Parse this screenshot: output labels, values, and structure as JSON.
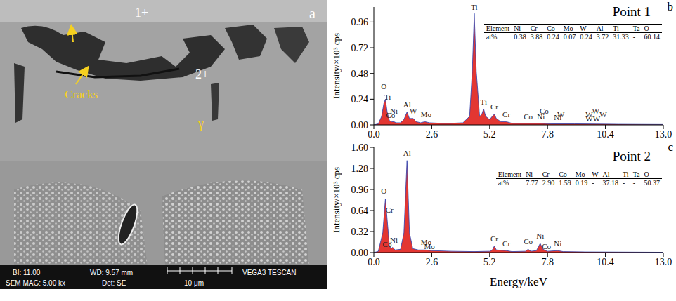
{
  "image": {
    "letter": "a",
    "labels": [
      "1+",
      "2+",
      "Cracks",
      "γ"
    ],
    "info_bar": [
      "BI: 11.00",
      "WD: 9.57 mm",
      "VEGA3 TESCAN",
      "SEM MAG: 5.00 kx",
      "Det: SE",
      "10 μm"
    ]
  },
  "x_label": "Energy/keV",
  "chart_data": [
    {
      "type": "area",
      "letter": "b",
      "title": "Point 1",
      "y_label": "Intensity/×10³ cps",
      "color": "#e0201c",
      "x": [
        0,
        0.2,
        0.35,
        0.45,
        0.52,
        0.6,
        0.7,
        0.8,
        0.9,
        1.0,
        1.2,
        1.35,
        1.49,
        1.6,
        1.77,
        1.9,
        2.1,
        2.29,
        2.5,
        3.0,
        3.5,
        4.0,
        4.3,
        4.42,
        4.51,
        4.6,
        4.75,
        4.85,
        4.93,
        5.02,
        5.2,
        5.32,
        5.41,
        5.5,
        5.7,
        5.95,
        6.2,
        6.93,
        7.47,
        8.0,
        8.4,
        9.0,
        10.0,
        11.0,
        12.0,
        13.0
      ],
      "values": [
        0,
        0.01,
        0.08,
        0.2,
        0.24,
        0.12,
        0.04,
        0.03,
        0.03,
        0.02,
        0.02,
        0.05,
        0.12,
        0.06,
        0.06,
        0.03,
        0.02,
        0.03,
        0.02,
        0.015,
        0.015,
        0.02,
        0.08,
        0.5,
        1.04,
        0.5,
        0.08,
        0.1,
        0.15,
        0.08,
        0.05,
        0.08,
        0.1,
        0.06,
        0.03,
        0.03,
        0.015,
        0.015,
        0.015,
        0.01,
        0.01,
        0.01,
        0.008,
        0.006,
        0.005,
        0.004
      ],
      "xlim": [
        0,
        13
      ],
      "xticks": [
        {
          "value": 0,
          "label": "0.0"
        },
        2.6,
        5.2,
        7.8,
        10.4,
        {
          "value": 13,
          "label": "13.0"
        }
      ],
      "ylim": [
        0,
        1.1
      ],
      "yticks": [
        {
          "value": 0,
          "label": "0.00"
        },
        0.24,
        0.48,
        0.72,
        0.96
      ],
      "peak_labels": [
        {
          "label": "O",
          "x": 0.45,
          "y": 0.3
        },
        {
          "label": "Ti",
          "x": 0.62,
          "y": 0.2
        },
        {
          "label": "Ni",
          "x": 0.9,
          "y": 0.07
        },
        {
          "label": "Co",
          "x": 0.75,
          "y": 0.03
        },
        {
          "label": "Al",
          "x": 1.49,
          "y": 0.13
        },
        {
          "label": "W",
          "x": 1.77,
          "y": 0.07
        },
        {
          "label": "Mo",
          "x": 2.35,
          "y": 0.04
        },
        {
          "label": "Ti",
          "x": 4.51,
          "y": 1.04
        },
        {
          "label": "Ti",
          "x": 4.93,
          "y": 0.16
        },
        {
          "label": "Cr",
          "x": 5.41,
          "y": 0.11
        },
        {
          "label": "Cr",
          "x": 5.95,
          "y": 0.04
        },
        {
          "label": "Co",
          "x": 6.93,
          "y": 0.02
        },
        {
          "label": "Co",
          "x": 7.65,
          "y": 0.07
        },
        {
          "label": "Ni",
          "x": 7.5,
          "y": 0.02
        },
        {
          "label": "W",
          "x": 8.4,
          "y": 0.04
        },
        {
          "label": "Ni",
          "x": 8.26,
          "y": 0.01
        },
        {
          "label": "W",
          "x": 9.67,
          "y": 0.04
        },
        {
          "label": "W",
          "x": 9.96,
          "y": 0.07
        },
        {
          "label": "W",
          "x": 10.3,
          "y": 0.04
        },
        {
          "label": "W",
          "x": 9.67,
          "y": 0.0
        },
        {
          "label": "W",
          "x": 10.0,
          "y": 0.0
        }
      ],
      "table": {
        "header": [
          "Element",
          "Ni",
          "Cr",
          "Co",
          "Mo",
          "W",
          "Al",
          "Ti",
          "Ta",
          "O"
        ],
        "rows": [
          [
            "at%",
            "0.38",
            "3.88",
            "0.24",
            "0.07",
            "0.24",
            "3.72",
            "31.33",
            "-",
            "60.14"
          ]
        ]
      }
    },
    {
      "type": "area",
      "letter": "c",
      "title": "Point 2",
      "y_label": "Intensity/×10³ cps",
      "color": "#e0201c",
      "x": [
        0,
        0.2,
        0.4,
        0.52,
        0.6,
        0.7,
        0.78,
        0.85,
        0.95,
        1.2,
        1.35,
        1.49,
        1.6,
        1.75,
        2.0,
        2.3,
        2.6,
        3.5,
        4.5,
        5.2,
        5.32,
        5.41,
        5.5,
        5.95,
        6.2,
        6.8,
        6.93,
        7.05,
        7.3,
        7.47,
        7.6,
        7.8,
        8.26,
        8.5,
        9.5,
        11.0,
        13.0
      ],
      "values": [
        0,
        0.02,
        0.3,
        0.82,
        0.5,
        0.1,
        0.06,
        0.08,
        0.04,
        0.05,
        0.3,
        1.4,
        0.3,
        0.06,
        0.04,
        0.04,
        0.03,
        0.02,
        0.015,
        0.02,
        0.04,
        0.1,
        0.04,
        0.03,
        0.015,
        0.02,
        0.05,
        0.02,
        0.03,
        0.14,
        0.05,
        0.02,
        0.03,
        0.015,
        0.01,
        0.008,
        0.005
      ],
      "xlim": [
        0,
        13
      ],
      "xticks": [
        {
          "value": 0,
          "label": "0.0"
        },
        2.6,
        5.2,
        7.8,
        10.4,
        {
          "value": 13,
          "label": "13.0"
        }
      ],
      "ylim": [
        0,
        1.6
      ],
      "yticks": [
        {
          "value": 0,
          "label": "0.00"
        },
        0.32,
        0.64,
        0.96,
        1.28,
        {
          "value": 1.6,
          "label": "1.60"
        }
      ],
      "peak_labels": [
        {
          "label": "O",
          "x": 0.45,
          "y": 0.84
        },
        {
          "label": "Cr",
          "x": 0.7,
          "y": 0.55
        },
        {
          "label": "Ni",
          "x": 0.9,
          "y": 0.1
        },
        {
          "label": "Co",
          "x": 0.6,
          "y": 0.03
        },
        {
          "label": "Al",
          "x": 1.49,
          "y": 1.42
        },
        {
          "label": "Mo",
          "x": 2.35,
          "y": 0.06
        },
        {
          "label": "Mo",
          "x": 2.5,
          "y": 0.0
        },
        {
          "label": "Cr",
          "x": 5.41,
          "y": 0.12
        },
        {
          "label": "Cr",
          "x": 5.95,
          "y": 0.04
        },
        {
          "label": "Co",
          "x": 6.93,
          "y": 0.07
        },
        {
          "label": "Ni",
          "x": 7.47,
          "y": 0.16
        },
        {
          "label": "Co",
          "x": 7.75,
          "y": 0.0
        },
        {
          "label": "Ni",
          "x": 8.26,
          "y": 0.04
        }
      ],
      "table": {
        "header": [
          "Element",
          "Ni",
          "Cr",
          "Co",
          "Mo",
          "W",
          "Al",
          "Ti",
          "Ta",
          "O"
        ],
        "rows": [
          [
            "at%",
            "7.77",
            "2.90",
            "1.59",
            "0.19",
            "-",
            "37.18",
            "-",
            "-",
            "50.37"
          ]
        ]
      }
    }
  ]
}
